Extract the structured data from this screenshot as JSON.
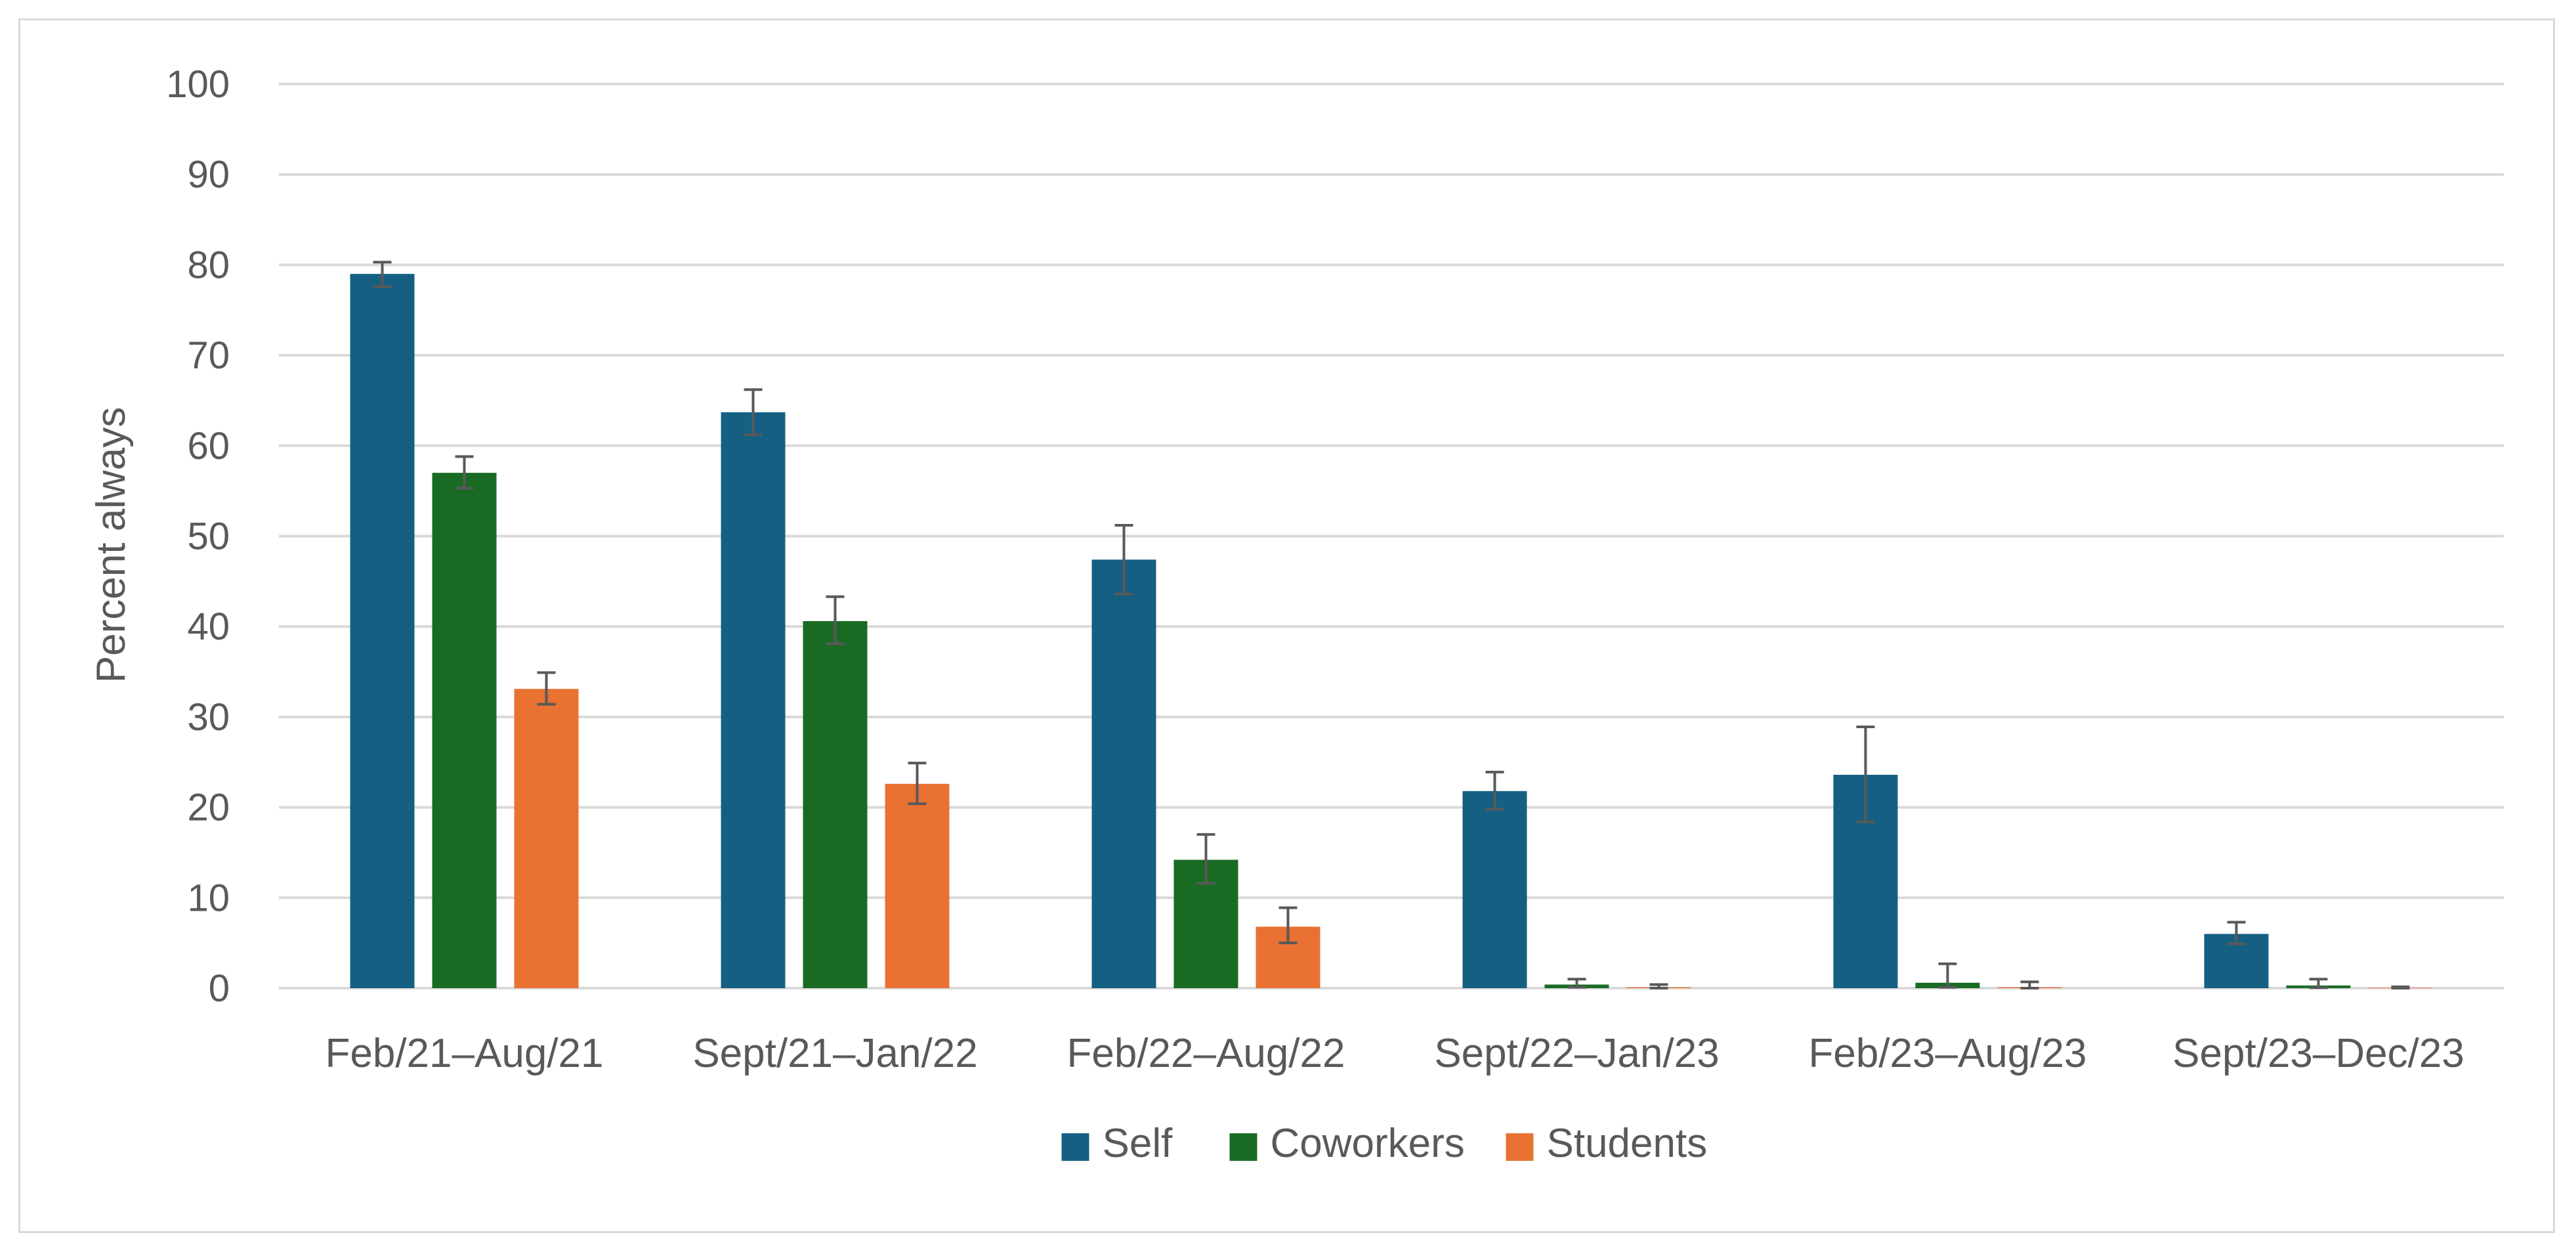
{
  "chart_data": {
    "type": "bar",
    "title": "",
    "xlabel": "",
    "ylabel": "Percent always",
    "ylim": [
      0,
      100
    ],
    "yticks": [
      0,
      10,
      20,
      30,
      40,
      50,
      60,
      70,
      80,
      90,
      100
    ],
    "grid": true,
    "legend_position": "bottom",
    "categories": [
      "Feb/21–Aug/21",
      "Sept/21–Jan/22",
      "Feb/22–Aug/22",
      "Sept/22–Jan/23",
      "Feb/23–Aug/23",
      "Sept/23–Dec/23"
    ],
    "series": [
      {
        "name": "Self",
        "color": "#156082",
        "values": [
          79,
          63.7,
          47.4,
          21.8,
          23.6,
          6
        ],
        "error_low": [
          77.6,
          61.2,
          43.6,
          19.8,
          18.4,
          4.9
        ],
        "error_high": [
          80.3,
          66.2,
          51.2,
          23.9,
          28.9,
          7.3
        ]
      },
      {
        "name": "Coworkers",
        "color": "#196B24",
        "values": [
          57,
          40.6,
          14.2,
          0.4,
          0.6,
          0.3
        ],
        "error_low": [
          55.3,
          38.1,
          11.6,
          0.1,
          0.1,
          0.05
        ],
        "error_high": [
          58.8,
          43.3,
          17,
          1,
          2.7,
          1
        ]
      },
      {
        "name": "Students",
        "color": "#E97132",
        "values": [
          33.1,
          22.6,
          6.8,
          0.1,
          0.1,
          0.05
        ],
        "error_low": [
          31.4,
          20.4,
          5,
          0,
          0,
          0
        ],
        "error_high": [
          34.9,
          24.9,
          8.9,
          0.4,
          0.7,
          0.15
        ]
      }
    ]
  },
  "colors": {
    "gridline": "#d9d9d9",
    "error_bar": "#595959",
    "text": "#595959",
    "frame_border": "#d9d9d9"
  }
}
